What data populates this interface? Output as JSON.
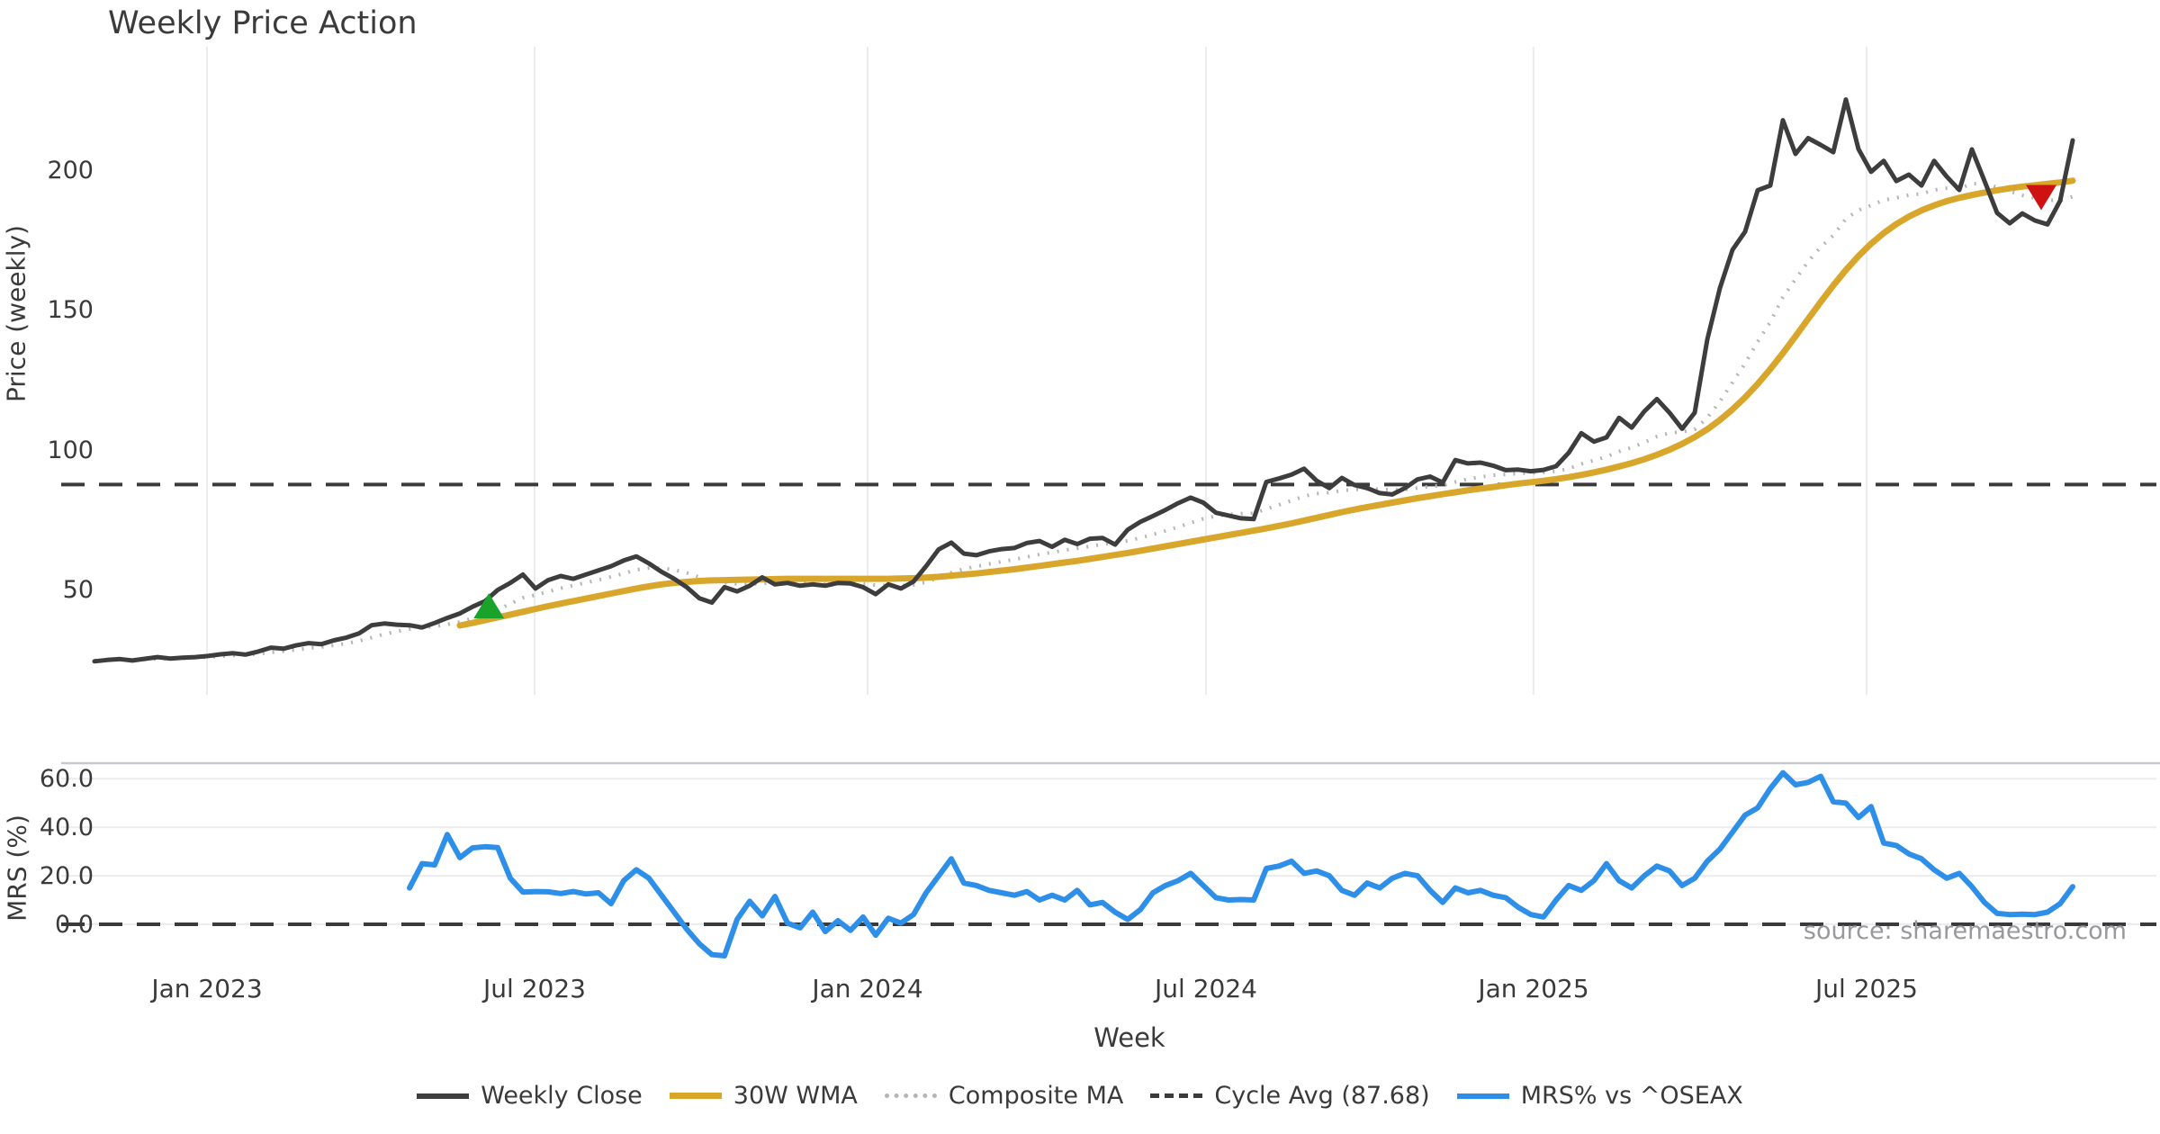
{
  "chart_data": {
    "type": "line",
    "title": "Weekly Price Action",
    "source_note": "source: sharemaestro.com",
    "layout": {
      "grid": "light vertical month gridlines on price panel, horizontal gridlines on MRS panel",
      "legend_position": "bottom center",
      "panels": 2
    },
    "style": {
      "background": "#ffffff",
      "grid_color": "#ececef",
      "spine_color": "#c8c8d0",
      "text_color": "#3a3a3a",
      "muted_text_color": "#98989d"
    },
    "x_axis": {
      "label": "Week",
      "ticks": [
        {
          "label": "Jan 2023",
          "wi": 8.93
        },
        {
          "label": "Jul 2023",
          "wi": 34.93
        },
        {
          "label": "Jan 2024",
          "wi": 61.36
        },
        {
          "label": "Jul 2024",
          "wi": 88.21
        },
        {
          "label": "Jan 2025",
          "wi": 114.21
        },
        {
          "label": "Jul 2025",
          "wi": 140.64
        }
      ]
    },
    "price_panel": {
      "ylabel": "Price (weekly)",
      "ylim": [
        13,
        241
      ],
      "cycle_avg": 87.68,
      "yticks": [
        {
          "label": "50",
          "value": 50
        },
        {
          "label": "100",
          "value": 100
        },
        {
          "label": "150",
          "value": 150
        },
        {
          "label": "200",
          "value": 200
        }
      ],
      "series": [
        {
          "name": "Composite MA",
          "color": "#b5b5b5",
          "style": "dotted",
          "width": 4,
          "values": [
            24.8,
            25.0,
            25.1,
            25.1,
            25.2,
            25.4,
            25.5,
            25.6,
            25.8,
            26.0,
            26.3,
            26.6,
            26.8,
            27.2,
            27.7,
            28.1,
            28.6,
            29.2,
            29.6,
            30.2,
            30.9,
            31.8,
            33.0,
            34.2,
            35.2,
            36.0,
            36.5,
            37.0,
            37.7,
            38.6,
            39.8,
            41.2,
            43.0,
            45.0,
            47.2,
            48.2,
            49.4,
            50.6,
            51.6,
            52.6,
            53.6,
            54.7,
            55.9,
            57.2,
            57.8,
            57.8,
            57.2,
            56.1,
            54.6,
            53.2,
            52.6,
            52.2,
            52.0,
            52.3,
            52.4,
            52.4,
            52.3,
            52.2,
            52.1,
            52.2,
            52.3,
            52.2,
            51.7,
            51.6,
            51.5,
            51.8,
            52.8,
            54.4,
            56.2,
            57.5,
            58.4,
            59.3,
            60.1,
            60.9,
            61.8,
            62.7,
            63.4,
            64.2,
            64.9,
            65.6,
            66.3,
            66.8,
            67.6,
            68.6,
            69.8,
            71.1,
            72.5,
            74.0,
            75.4,
            76.4,
            77.0,
            77.3,
            77.4,
            78.9,
            80.4,
            81.9,
            83.5,
            84.4,
            84.8,
            85.5,
            85.9,
            86.1,
            86.0,
            85.8,
            85.9,
            86.4,
            87.0,
            87.3,
            88.6,
            89.6,
            90.4,
            91.0,
            91.3,
            91.6,
            91.8,
            92.0,
            92.4,
            93.3,
            95.0,
            96.3,
            97.6,
            99.5,
            100.9,
            102.7,
            104.8,
            106.1,
            106.5,
            107.4,
            111.5,
            117.3,
            124.1,
            130.9,
            138.7,
            145.7,
            154.6,
            161.0,
            167.3,
            172.5,
            176.7,
            182.6,
            185.7,
            187.4,
            189.3,
            190.1,
            191.1,
            191.5,
            192.9,
            193.5,
            193.4,
            195.1,
            195.2,
            193.9,
            192.4,
            191.0,
            190.0,
            189.3,
            189.2,
            190.5
          ]
        },
        {
          "name": "30W WMA",
          "color": "#d9a62c",
          "style": "solid",
          "width": 7,
          "values": [
            null,
            null,
            null,
            null,
            null,
            null,
            null,
            null,
            null,
            null,
            null,
            null,
            null,
            null,
            null,
            null,
            null,
            null,
            null,
            null,
            null,
            null,
            null,
            null,
            null,
            null,
            null,
            null,
            null,
            37.3,
            38.2,
            39.2,
            40.2,
            41.2,
            42.2,
            43.2,
            44.2,
            45.1,
            46.0,
            46.9,
            47.8,
            48.7,
            49.6,
            50.5,
            51.3,
            52.0,
            52.5,
            52.9,
            53.2,
            53.4,
            53.5,
            53.6,
            53.7,
            53.8,
            53.9,
            54.0,
            54.0,
            54.0,
            54.0,
            54.0,
            54.0,
            54.0,
            54.0,
            54.0,
            54.1,
            54.2,
            54.4,
            54.7,
            55.1,
            55.5,
            55.9,
            56.4,
            56.9,
            57.4,
            58.0,
            58.6,
            59.2,
            59.8,
            60.4,
            61.1,
            61.8,
            62.5,
            63.2,
            64.0,
            64.8,
            65.6,
            66.4,
            67.2,
            68.0,
            68.8,
            69.6,
            70.4,
            71.2,
            72.0,
            72.9,
            73.8,
            74.8,
            75.8,
            76.8,
            77.8,
            78.7,
            79.6,
            80.4,
            81.2,
            82.0,
            82.8,
            83.5,
            84.2,
            84.9,
            85.6,
            86.2,
            86.8,
            87.4,
            88.0,
            88.5,
            89.0,
            89.6,
            90.3,
            91.1,
            92.0,
            93.0,
            94.1,
            95.3,
            96.7,
            98.3,
            100.1,
            102.2,
            104.6,
            107.4,
            110.7,
            114.5,
            118.8,
            123.6,
            128.9,
            134.6,
            140.6,
            146.8,
            152.9,
            158.8,
            164.3,
            169.3,
            173.7,
            177.5,
            180.7,
            183.4,
            185.6,
            187.4,
            188.9,
            190.1,
            191.1,
            192.0,
            192.8,
            193.5,
            194.1,
            194.6,
            195.1,
            195.6,
            196.2
          ]
        },
        {
          "name": "Weekly Close",
          "color": "#3d3d3d",
          "style": "solid",
          "width": 5,
          "values": [
            24.5,
            25.0,
            25.3,
            24.8,
            25.4,
            26.0,
            25.5,
            25.8,
            26.0,
            26.4,
            27.0,
            27.4,
            26.9,
            28.0,
            29.4,
            29.0,
            30.2,
            31.0,
            30.6,
            32.0,
            33.0,
            34.5,
            37.4,
            38.0,
            37.6,
            37.4,
            36.6,
            38.2,
            40.0,
            41.6,
            44.0,
            46.0,
            50.0,
            52.5,
            55.5,
            50.5,
            53.5,
            55.0,
            54.0,
            55.5,
            57.0,
            58.5,
            60.5,
            62.0,
            59.5,
            56.5,
            54.0,
            51.0,
            47.0,
            45.5,
            51.0,
            49.5,
            51.5,
            54.5,
            52.0,
            52.5,
            51.5,
            52.0,
            51.5,
            52.5,
            52.3,
            51.0,
            48.5,
            52.0,
            50.5,
            53.0,
            58.5,
            64.5,
            66.9,
            63.0,
            62.4,
            63.8,
            64.6,
            65.0,
            66.8,
            67.5,
            65.4,
            67.9,
            66.4,
            68.3,
            68.6,
            66.2,
            71.5,
            74.3,
            76.4,
            78.6,
            81.0,
            83.0,
            81.2,
            77.6,
            76.6,
            75.6,
            75.3,
            88.6,
            89.8,
            91.2,
            93.3,
            89.0,
            86.4,
            90.0,
            87.5,
            86.4,
            84.6,
            84.1,
            86.4,
            89.5,
            90.5,
            88.4,
            96.4,
            95.2,
            95.5,
            94.4,
            92.8,
            93.0,
            92.4,
            92.9,
            94.2,
            99.0,
            106.0,
            103.0,
            104.5,
            111.5,
            108.0,
            113.8,
            118.2,
            113.3,
            107.6,
            113.3,
            139.5,
            157.8,
            171.5,
            178.0,
            192.8,
            194.5,
            217.8,
            205.8,
            211.4,
            209.0,
            206.4,
            225.2,
            207.5,
            199.4,
            203.3,
            196.1,
            198.4,
            194.5,
            203.3,
            197.7,
            192.9,
            207.4,
            196.1,
            184.7,
            181.0,
            184.5,
            182.0,
            180.6,
            189.0,
            210.6
          ]
        }
      ],
      "markers": [
        {
          "name": "buy-signal",
          "shape": "triangle-up",
          "color": "#19a32a",
          "wi": 31.3,
          "value": 44.0
        },
        {
          "name": "sell-signal",
          "shape": "triangle-down",
          "color": "#ce1212",
          "wi": 154.5,
          "value": 190.5
        }
      ]
    },
    "mrs_panel": {
      "ylabel": "MRS (%)",
      "ylim": [
        -15,
        66
      ],
      "zero_line": 0,
      "yticks": [
        {
          "label": "0.0",
          "value": 0
        },
        {
          "label": "20.0",
          "value": 20
        },
        {
          "label": "40.0",
          "value": 40
        },
        {
          "label": "60.0",
          "value": 60
        }
      ],
      "series": [
        {
          "name": "MRS% vs ^OSEAX",
          "color": "#2e8fe8",
          "style": "solid",
          "width": 6,
          "values": [
            null,
            null,
            null,
            null,
            null,
            null,
            null,
            null,
            null,
            null,
            null,
            null,
            null,
            null,
            null,
            null,
            null,
            null,
            null,
            null,
            null,
            null,
            null,
            null,
            null,
            15.0,
            25.0,
            24.5,
            37.0,
            27.5,
            31.5,
            32.0,
            31.6,
            19.0,
            13.3,
            13.5,
            13.4,
            12.7,
            13.5,
            12.5,
            13.0,
            8.5,
            18.0,
            22.5,
            19.0,
            12.0,
            5.0,
            -2.0,
            -8.0,
            -12.5,
            -13.0,
            2.0,
            9.5,
            3.5,
            11.5,
            0.5,
            -1.5,
            5.0,
            -3.0,
            1.5,
            -2.5,
            3.0,
            -4.5,
            2.5,
            0.5,
            4.0,
            13.0,
            20.0,
            27.0,
            17.0,
            16.0,
            14.0,
            13.0,
            12.0,
            13.5,
            10.0,
            12.0,
            10.0,
            14.0,
            8.0,
            9.0,
            5.0,
            2.0,
            6.0,
            13.0,
            16.0,
            18.0,
            21.0,
            16.0,
            11.0,
            10.0,
            10.2,
            10.0,
            23.0,
            24.0,
            26.0,
            21.0,
            22.0,
            20.0,
            14.0,
            12.0,
            17.0,
            15.0,
            19.0,
            21.0,
            20.0,
            14.0,
            9.0,
            15.0,
            13.0,
            14.0,
            12.0,
            11.0,
            7.0,
            4.0,
            3.0,
            10.0,
            16.0,
            14.0,
            18.0,
            25.0,
            18.0,
            15.0,
            20.0,
            24.0,
            22.0,
            16.0,
            19.0,
            26.0,
            31.0,
            38.0,
            45.0,
            48.0,
            56.0,
            62.5,
            57.5,
            58.5,
            61.0,
            50.5,
            50.0,
            44.0,
            48.5,
            33.5,
            32.5,
            29.0,
            27.0,
            22.5,
            19.0,
            21.0,
            15.5,
            9.0,
            4.5,
            4.0,
            4.2,
            4.0,
            5.0,
            8.5,
            15.5
          ]
        }
      ]
    },
    "legend": [
      "Weekly Close",
      "30W WMA",
      "Composite MA",
      "Cycle Avg (87.68)",
      "MRS% vs ^OSEAX"
    ]
  }
}
